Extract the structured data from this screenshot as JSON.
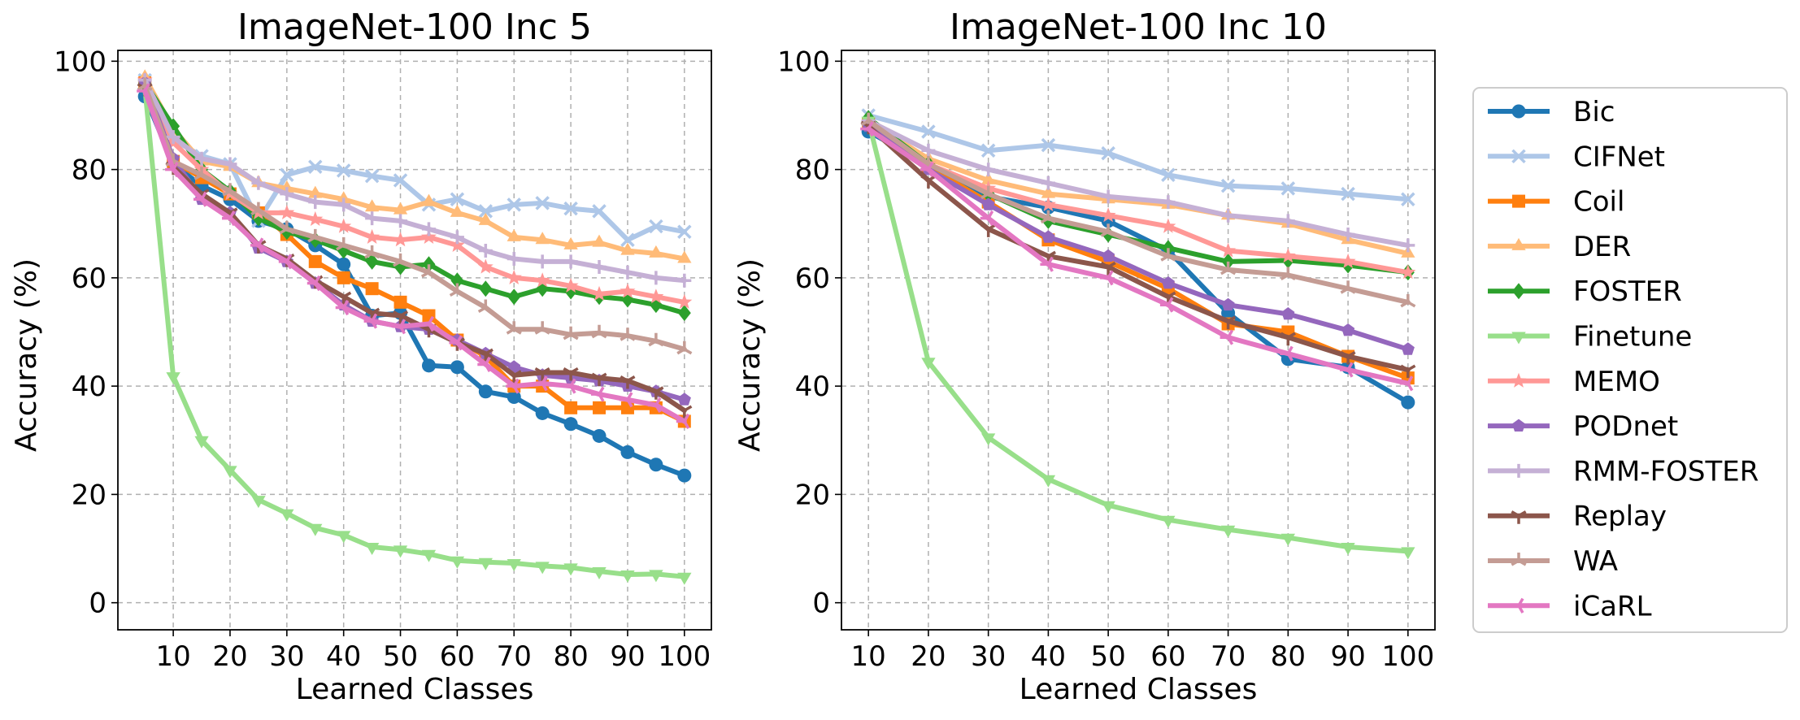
{
  "chart_data": [
    {
      "type": "line",
      "title": "ImageNet-100 Inc 5",
      "xlabel": "Learned Classes",
      "ylabel": "Accuracy (%)",
      "xlim": [
        0.25,
        104.75
      ],
      "ylim": [
        -5,
        102
      ],
      "xticks": [
        10,
        20,
        30,
        40,
        50,
        60,
        70,
        80,
        90,
        100
      ],
      "yticks": [
        0,
        20,
        40,
        60,
        80,
        100
      ],
      "grid": true,
      "x": [
        5,
        10,
        15,
        20,
        25,
        30,
        35,
        40,
        45,
        50,
        55,
        60,
        65,
        70,
        75,
        80,
        85,
        90,
        95,
        100
      ],
      "series": [
        {
          "name": "Bic",
          "values": [
            93.5,
            81,
            77,
            74.5,
            70.5,
            69,
            66,
            62.5,
            53,
            53.5,
            43.8,
            43.5,
            39,
            38,
            35,
            33,
            30.8,
            27.8,
            25.5,
            23.5
          ]
        },
        {
          "name": "CIFNet",
          "values": [
            96.5,
            85.5,
            82.5,
            81,
            70.5,
            79,
            80.5,
            79.8,
            78.8,
            78,
            73.5,
            74.5,
            72.3,
            73.5,
            73.8,
            72.8,
            72.3,
            67,
            69.5,
            68.5
          ]
        },
        {
          "name": "Coil",
          "values": [
            96,
            81.5,
            78.5,
            75.5,
            72,
            68,
            63,
            60,
            58,
            55.5,
            53,
            48.5,
            45.5,
            40,
            40,
            36,
            36,
            36,
            36,
            33.5
          ]
        },
        {
          "name": "DER",
          "values": [
            97,
            87.5,
            81.5,
            80.5,
            77.5,
            76.5,
            75.5,
            74.5,
            73,
            72.5,
            74,
            72,
            70.5,
            67.5,
            67,
            66,
            66.5,
            65,
            64.5,
            63.5
          ]
        },
        {
          "name": "FOSTER",
          "values": [
            96,
            88,
            80,
            76,
            71,
            68.5,
            67,
            65,
            63,
            62,
            62.5,
            59.5,
            58,
            56.5,
            58,
            57.5,
            56.5,
            56,
            55,
            53.5
          ]
        },
        {
          "name": "Finetune",
          "values": [
            95,
            41.8,
            30,
            24.5,
            19,
            16.5,
            13.8,
            12.5,
            10.3,
            9.8,
            9,
            7.8,
            7.5,
            7.3,
            6.8,
            6.5,
            5.8,
            5.2,
            5.3,
            4.8
          ]
        },
        {
          "name": "MEMO",
          "values": [
            96.5,
            85,
            80,
            75.5,
            72,
            72,
            70.8,
            69.5,
            67.5,
            67,
            67.5,
            66,
            62,
            60,
            59.5,
            58.5,
            57,
            57.5,
            56.5,
            55.5
          ]
        },
        {
          "name": "PODnet",
          "values": [
            96,
            82,
            74.5,
            72,
            65.5,
            63,
            59,
            55,
            52,
            51,
            50.5,
            48.5,
            46,
            43.5,
            42,
            41.5,
            41,
            40,
            39,
            37.5
          ]
        },
        {
          "name": "RMM-FOSTER",
          "values": [
            96.5,
            86,
            82,
            81,
            77.5,
            75.5,
            74,
            73.5,
            71,
            70.5,
            69,
            67.5,
            65,
            63.5,
            63,
            63,
            62,
            61,
            60,
            59.5
          ]
        },
        {
          "name": "Replay",
          "values": [
            95,
            80.5,
            75.5,
            72,
            66,
            63.5,
            59.5,
            56.5,
            53.5,
            53,
            50.5,
            48,
            46,
            42,
            42.5,
            42.5,
            41.5,
            41,
            39,
            35.5
          ]
        },
        {
          "name": "WA",
          "values": [
            95.5,
            81.5,
            79,
            76,
            72.5,
            69,
            67.5,
            66,
            64.5,
            63,
            61,
            57.5,
            54.5,
            50.5,
            50.5,
            49.5,
            49.8,
            49.3,
            48.3,
            46.8
          ]
        },
        {
          "name": "iCaRL",
          "values": [
            94.5,
            80,
            74.5,
            71,
            66,
            63,
            59,
            54.5,
            52,
            51,
            51.5,
            48,
            44,
            40,
            40.5,
            40,
            38.5,
            37.5,
            36.5,
            33.5
          ]
        }
      ]
    },
    {
      "type": "line",
      "title": "ImageNet-100 Inc 10",
      "xlabel": "Learned Classes",
      "ylabel": "Accuracy (%)",
      "xlim": [
        5.5,
        104.5
      ],
      "ylim": [
        -5,
        102
      ],
      "xticks": [
        10,
        20,
        30,
        40,
        50,
        60,
        70,
        80,
        90,
        100
      ],
      "yticks": [
        0,
        20,
        40,
        60,
        80,
        100
      ],
      "grid": true,
      "x": [
        10,
        20,
        30,
        40,
        50,
        60,
        70,
        80,
        90,
        100
      ],
      "series": [
        {
          "name": "Bic",
          "values": [
            87,
            81,
            75,
            73,
            70.5,
            65,
            53.5,
            45,
            43.5,
            37
          ]
        },
        {
          "name": "CIFNet",
          "values": [
            90,
            87,
            83.5,
            84.5,
            83,
            79,
            77,
            76.5,
            75.5,
            74.5
          ]
        },
        {
          "name": "Coil",
          "values": [
            88.5,
            80.5,
            74,
            67,
            63,
            58,
            51.5,
            50,
            45.5,
            41.5
          ]
        },
        {
          "name": "DER",
          "values": [
            89,
            82,
            78,
            75.5,
            74.5,
            73.5,
            71.5,
            70,
            67,
            64.5
          ]
        },
        {
          "name": "FOSTER",
          "values": [
            89.5,
            81,
            75.5,
            70.5,
            68,
            65.5,
            63,
            63.2,
            62.3,
            61
          ]
        },
        {
          "name": "Finetune",
          "values": [
            89,
            44.5,
            30.5,
            22.8,
            18,
            15.3,
            13.5,
            12,
            10.3,
            9.5
          ]
        },
        {
          "name": "MEMO",
          "values": [
            88.5,
            81,
            76.5,
            73.5,
            71.5,
            69.5,
            65,
            64,
            63,
            61
          ]
        },
        {
          "name": "PODnet",
          "values": [
            88,
            80,
            73.5,
            67.5,
            64,
            59,
            55,
            53.3,
            50.3,
            46.8
          ]
        },
        {
          "name": "RMM-FOSTER",
          "values": [
            89,
            83.5,
            80,
            77.5,
            75,
            74,
            71.5,
            70.5,
            68,
            66
          ]
        },
        {
          "name": "Replay",
          "values": [
            88,
            78,
            69,
            64,
            62,
            56.5,
            52,
            49,
            45.5,
            43
          ]
        },
        {
          "name": "WA",
          "values": [
            89,
            81,
            75.5,
            71,
            68.5,
            64,
            61.5,
            60.5,
            58,
            55.5
          ]
        },
        {
          "name": "iCaRL",
          "values": [
            87.5,
            80,
            71,
            62.5,
            60,
            55,
            49,
            46,
            43,
            40.5
          ]
        }
      ]
    }
  ],
  "legend": {
    "placement": "right",
    "entries": [
      {
        "name": "Bic",
        "color": "#1f77b4",
        "marker": "circle"
      },
      {
        "name": "CIFNet",
        "color": "#aec7e8",
        "marker": "x"
      },
      {
        "name": "Coil",
        "color": "#ff7f0e",
        "marker": "square"
      },
      {
        "name": "DER",
        "color": "#ffbb78",
        "marker": "triangle-up"
      },
      {
        "name": "FOSTER",
        "color": "#2ca02c",
        "marker": "diamond"
      },
      {
        "name": "Finetune",
        "color": "#98df8a",
        "marker": "triangle-down"
      },
      {
        "name": "MEMO",
        "color": "#ff9896",
        "marker": "star"
      },
      {
        "name": "PODnet",
        "color": "#9467bd",
        "marker": "pentagon"
      },
      {
        "name": "RMM-FOSTER",
        "color": "#c5b0d5",
        "marker": "plus"
      },
      {
        "name": "Replay",
        "color": "#8c564b",
        "marker": "tri-down"
      },
      {
        "name": "WA",
        "color": "#c49c94",
        "marker": "tri-up"
      },
      {
        "name": "iCaRL",
        "color": "#e377c2",
        "marker": "tri-left"
      }
    ]
  }
}
